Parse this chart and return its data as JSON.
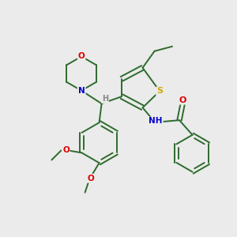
{
  "background_color": "#ebebeb",
  "bond_color": "#2d6b2d",
  "atom_colors": {
    "O": "#dd0000",
    "N": "#0000cc",
    "S": "#ccaa00",
    "H": "#888888"
  }
}
